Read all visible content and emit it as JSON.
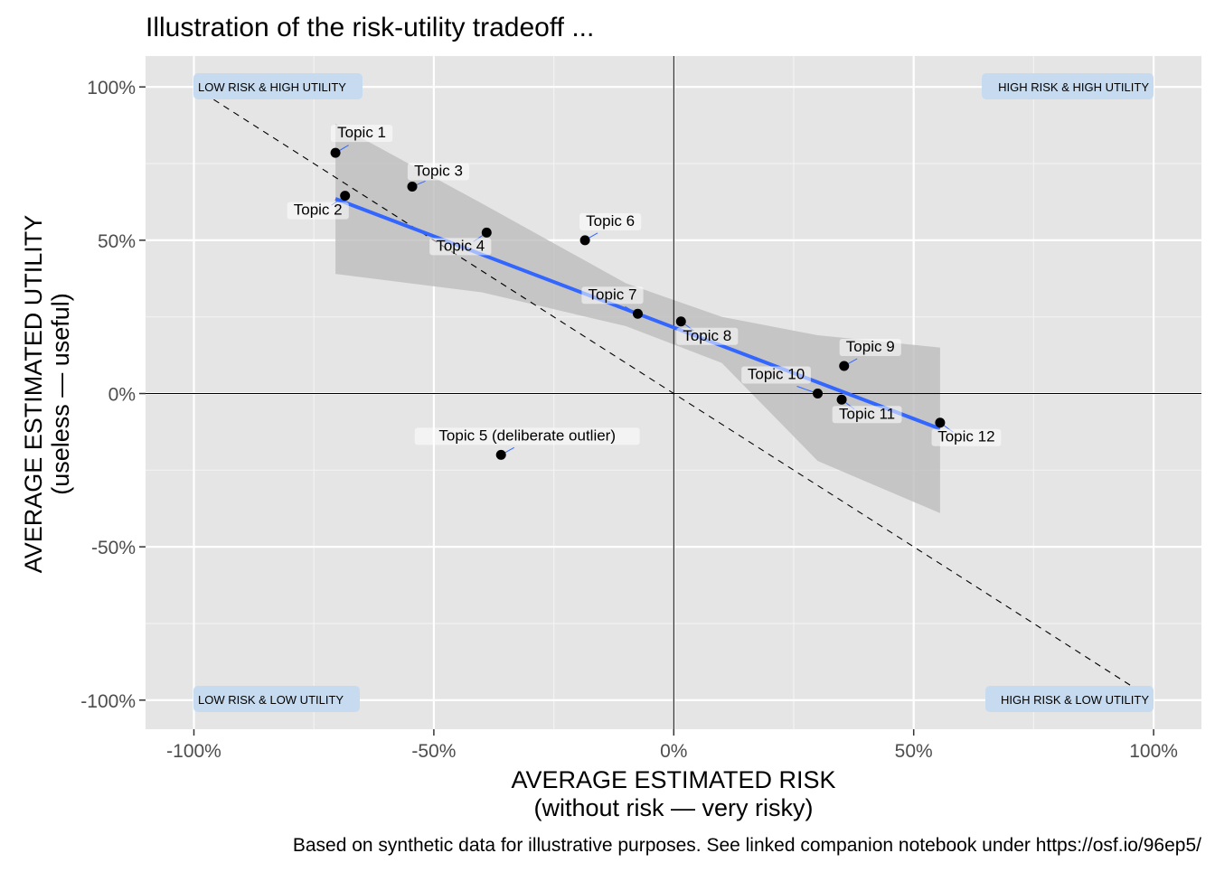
{
  "chart_data": {
    "type": "scatter",
    "title": "Illustration of the risk-utility tradeoff ...",
    "xlabel": "AVERAGE ESTIMATED RISK",
    "xlabel_sub": "(without risk — very risky)",
    "ylabel": "AVERAGE ESTIMATED UTILITY",
    "ylabel_sub": "(useless — useful)",
    "caption": "Based on synthetic data for illustrative purposes. See linked companion notebook under https://osf.io/96ep5/",
    "xlim": [
      -1.1,
      1.1
    ],
    "ylim": [
      -1.1,
      1.1
    ],
    "x_ticks": [
      {
        "value": -1,
        "label": "-100%"
      },
      {
        "value": -0.5,
        "label": "-50%"
      },
      {
        "value": 0,
        "label": "0%"
      },
      {
        "value": 0.5,
        "label": "50%"
      },
      {
        "value": 1,
        "label": "100%"
      }
    ],
    "y_ticks": [
      {
        "value": 1,
        "label": "100%"
      },
      {
        "value": 0.5,
        "label": "50%"
      },
      {
        "value": 0,
        "label": "0%"
      },
      {
        "value": -0.5,
        "label": "-50%"
      },
      {
        "value": -1,
        "label": "-100%"
      }
    ],
    "grid": true,
    "points": [
      {
        "label": "Topic 1",
        "x": -0.705,
        "y": 0.785
      },
      {
        "label": "Topic 2",
        "x": -0.685,
        "y": 0.645
      },
      {
        "label": "Topic 3",
        "x": -0.545,
        "y": 0.675
      },
      {
        "label": "Topic 4",
        "x": -0.39,
        "y": 0.525
      },
      {
        "label": "Topic 5 (deliberate outlier)",
        "x": -0.36,
        "y": -0.2
      },
      {
        "label": "Topic 6",
        "x": -0.185,
        "y": 0.5
      },
      {
        "label": "Topic 7",
        "x": -0.075,
        "y": 0.26
      },
      {
        "label": "Topic 8",
        "x": 0.015,
        "y": 0.235
      },
      {
        "label": "Topic 9",
        "x": 0.355,
        "y": 0.09
      },
      {
        "label": "Topic 10",
        "x": 0.3,
        "y": 0.0
      },
      {
        "label": "Topic 11",
        "x": 0.35,
        "y": -0.02
      },
      {
        "label": "Topic 12",
        "x": 0.555,
        "y": -0.095
      }
    ],
    "regression": {
      "x_range": [
        -0.705,
        0.555
      ],
      "y_start": 0.635,
      "y_end": -0.115,
      "band_lower": [
        0.39,
        -0.39
      ],
      "band_upper": [
        0.88,
        0.15
      ]
    },
    "reference_line": {
      "x": [
        -1,
        1
      ],
      "y": [
        1,
        -1
      ]
    },
    "quadrants": {
      "top_left": "LOW RISK & HIGH UTILITY",
      "top_right": "HIGH RISK & HIGH UTILITY",
      "bottom_left": "LOW RISK & LOW UTILITY",
      "bottom_right": "HIGH RISK & LOW UTILITY"
    },
    "colors": {
      "panel": "#e5e5e5",
      "grid": "#ffffff",
      "fit": "#3366ff",
      "band": "#bdbdbd",
      "quadrant_box": "#c6dbef",
      "point": "#000000"
    }
  }
}
